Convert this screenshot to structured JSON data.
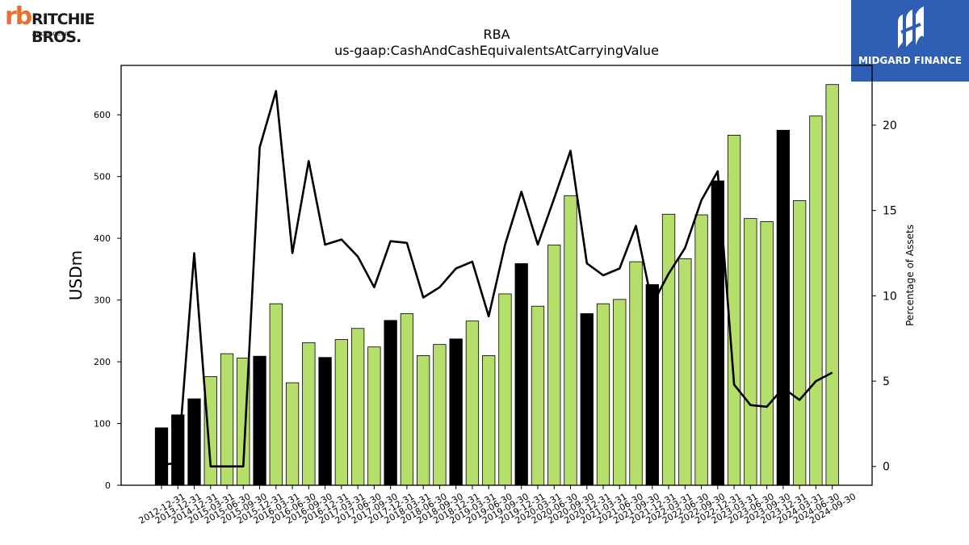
{
  "logos": {
    "left": {
      "mark": "rb",
      "name": "RITCHIE BROS.",
      "sub": "Auctioneers"
    },
    "right": {
      "name": "MIDGARD FINANCE"
    }
  },
  "chart_data": {
    "type": "bar",
    "title": "RBA",
    "subtitle": "us-gaap:CashAndCashEquivalentsAtCarryingValue",
    "ylabel": "USDm",
    "y2label": "Percentage of Assets",
    "ylim": [
      0,
      680
    ],
    "y2lim": [
      -1.1,
      23.5
    ],
    "yticks": [
      0,
      100,
      200,
      300,
      400,
      500,
      600
    ],
    "y2ticks": [
      0,
      5,
      10,
      15,
      20
    ],
    "colors": {
      "annual": "#000000",
      "quarterly": "#b5df6a",
      "line": "#000000"
    },
    "categories": [
      "2012-12-31",
      "2013-12-31",
      "2014-12-31",
      "2015-03-31",
      "2015-06-30",
      "2015-09-30",
      "2015-12-31",
      "2016-03-31",
      "2016-06-30",
      "2016-09-30",
      "2016-12-31",
      "2017-03-31",
      "2017-06-30",
      "2017-09-30",
      "2017-12-31",
      "2018-03-31",
      "2018-06-30",
      "2018-09-30",
      "2018-12-31",
      "2019-03-31",
      "2019-06-30",
      "2019-09-30",
      "2019-12-31",
      "2020-03-31",
      "2020-06-30",
      "2020-09-30",
      "2020-12-31",
      "2021-03-31",
      "2021-06-30",
      "2021-09-30",
      "2021-12-31",
      "2022-03-31",
      "2022-06-30",
      "2022-09-30",
      "2022-12-31",
      "2023-03-31",
      "2023-06-30",
      "2023-09-30",
      "2023-12-31",
      "2024-03-31",
      "2024-06-30",
      "2024-09-30"
    ],
    "annual": [
      true,
      true,
      true,
      false,
      false,
      false,
      true,
      false,
      false,
      false,
      true,
      false,
      false,
      false,
      true,
      false,
      false,
      false,
      true,
      false,
      false,
      false,
      true,
      false,
      false,
      false,
      true,
      false,
      false,
      false,
      true,
      false,
      false,
      false,
      true,
      false,
      false,
      false,
      true,
      false,
      false,
      false
    ],
    "series": [
      {
        "name": "CashAndCashEquivalentsAtCarryingValue",
        "axis": "left",
        "values": [
          93,
          114,
          140,
          176,
          213,
          206,
          209,
          294,
          166,
          231,
          207,
          236,
          254,
          224,
          267,
          278,
          210,
          228,
          237,
          266,
          210,
          310,
          359,
          290,
          389,
          469,
          278,
          294,
          301,
          362,
          325,
          439,
          367,
          438,
          493,
          567,
          432,
          427,
          575,
          461,
          598,
          649
        ]
      },
      {
        "name": "Percentage of Assets",
        "axis": "right",
        "values": [
          0.1,
          0.2,
          12.5,
          0.0,
          0.0,
          0.0,
          18.7,
          22.0,
          12.5,
          17.9,
          13.0,
          13.3,
          12.3,
          10.5,
          13.2,
          13.1,
          9.9,
          10.5,
          11.6,
          12.0,
          8.8,
          13.0,
          16.1,
          13.0,
          15.7,
          18.5,
          11.9,
          11.2,
          11.6,
          14.1,
          9.5,
          11.3,
          12.8,
          15.6,
          17.3,
          4.8,
          3.6,
          3.5,
          4.6,
          3.9,
          5.0,
          5.5
        ]
      }
    ]
  }
}
